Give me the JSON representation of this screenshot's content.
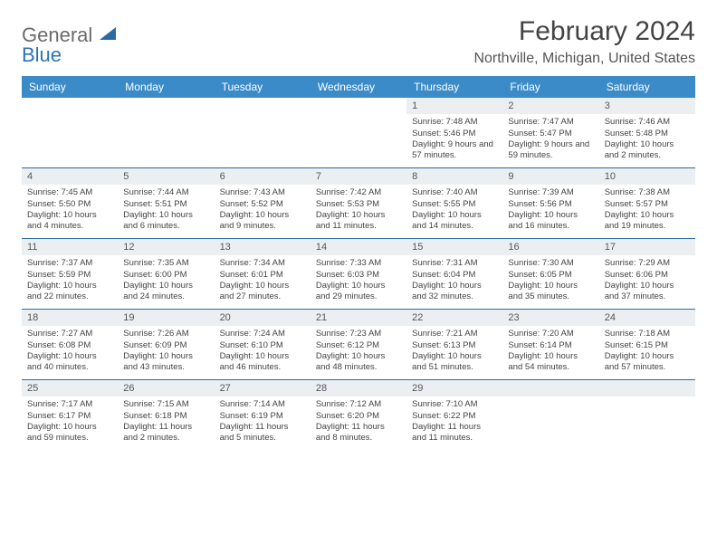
{
  "logo": {
    "word1": "General",
    "word2": "Blue"
  },
  "title": "February 2024",
  "location": "Northville, Michigan, United States",
  "accent_color": "#3b8bc9",
  "border_color": "#2b6aa3",
  "daynum_bg": "#eceff1",
  "headers": [
    "Sunday",
    "Monday",
    "Tuesday",
    "Wednesday",
    "Thursday",
    "Friday",
    "Saturday"
  ],
  "weeks": [
    [
      null,
      null,
      null,
      null,
      {
        "n": "1",
        "sr": "Sunrise: 7:48 AM",
        "ss": "Sunset: 5:46 PM",
        "dl": "Daylight: 9 hours and 57 minutes."
      },
      {
        "n": "2",
        "sr": "Sunrise: 7:47 AM",
        "ss": "Sunset: 5:47 PM",
        "dl": "Daylight: 9 hours and 59 minutes."
      },
      {
        "n": "3",
        "sr": "Sunrise: 7:46 AM",
        "ss": "Sunset: 5:48 PM",
        "dl": "Daylight: 10 hours and 2 minutes."
      }
    ],
    [
      {
        "n": "4",
        "sr": "Sunrise: 7:45 AM",
        "ss": "Sunset: 5:50 PM",
        "dl": "Daylight: 10 hours and 4 minutes."
      },
      {
        "n": "5",
        "sr": "Sunrise: 7:44 AM",
        "ss": "Sunset: 5:51 PM",
        "dl": "Daylight: 10 hours and 6 minutes."
      },
      {
        "n": "6",
        "sr": "Sunrise: 7:43 AM",
        "ss": "Sunset: 5:52 PM",
        "dl": "Daylight: 10 hours and 9 minutes."
      },
      {
        "n": "7",
        "sr": "Sunrise: 7:42 AM",
        "ss": "Sunset: 5:53 PM",
        "dl": "Daylight: 10 hours and 11 minutes."
      },
      {
        "n": "8",
        "sr": "Sunrise: 7:40 AM",
        "ss": "Sunset: 5:55 PM",
        "dl": "Daylight: 10 hours and 14 minutes."
      },
      {
        "n": "9",
        "sr": "Sunrise: 7:39 AM",
        "ss": "Sunset: 5:56 PM",
        "dl": "Daylight: 10 hours and 16 minutes."
      },
      {
        "n": "10",
        "sr": "Sunrise: 7:38 AM",
        "ss": "Sunset: 5:57 PM",
        "dl": "Daylight: 10 hours and 19 minutes."
      }
    ],
    [
      {
        "n": "11",
        "sr": "Sunrise: 7:37 AM",
        "ss": "Sunset: 5:59 PM",
        "dl": "Daylight: 10 hours and 22 minutes."
      },
      {
        "n": "12",
        "sr": "Sunrise: 7:35 AM",
        "ss": "Sunset: 6:00 PM",
        "dl": "Daylight: 10 hours and 24 minutes."
      },
      {
        "n": "13",
        "sr": "Sunrise: 7:34 AM",
        "ss": "Sunset: 6:01 PM",
        "dl": "Daylight: 10 hours and 27 minutes."
      },
      {
        "n": "14",
        "sr": "Sunrise: 7:33 AM",
        "ss": "Sunset: 6:03 PM",
        "dl": "Daylight: 10 hours and 29 minutes."
      },
      {
        "n": "15",
        "sr": "Sunrise: 7:31 AM",
        "ss": "Sunset: 6:04 PM",
        "dl": "Daylight: 10 hours and 32 minutes."
      },
      {
        "n": "16",
        "sr": "Sunrise: 7:30 AM",
        "ss": "Sunset: 6:05 PM",
        "dl": "Daylight: 10 hours and 35 minutes."
      },
      {
        "n": "17",
        "sr": "Sunrise: 7:29 AM",
        "ss": "Sunset: 6:06 PM",
        "dl": "Daylight: 10 hours and 37 minutes."
      }
    ],
    [
      {
        "n": "18",
        "sr": "Sunrise: 7:27 AM",
        "ss": "Sunset: 6:08 PM",
        "dl": "Daylight: 10 hours and 40 minutes."
      },
      {
        "n": "19",
        "sr": "Sunrise: 7:26 AM",
        "ss": "Sunset: 6:09 PM",
        "dl": "Daylight: 10 hours and 43 minutes."
      },
      {
        "n": "20",
        "sr": "Sunrise: 7:24 AM",
        "ss": "Sunset: 6:10 PM",
        "dl": "Daylight: 10 hours and 46 minutes."
      },
      {
        "n": "21",
        "sr": "Sunrise: 7:23 AM",
        "ss": "Sunset: 6:12 PM",
        "dl": "Daylight: 10 hours and 48 minutes."
      },
      {
        "n": "22",
        "sr": "Sunrise: 7:21 AM",
        "ss": "Sunset: 6:13 PM",
        "dl": "Daylight: 10 hours and 51 minutes."
      },
      {
        "n": "23",
        "sr": "Sunrise: 7:20 AM",
        "ss": "Sunset: 6:14 PM",
        "dl": "Daylight: 10 hours and 54 minutes."
      },
      {
        "n": "24",
        "sr": "Sunrise: 7:18 AM",
        "ss": "Sunset: 6:15 PM",
        "dl": "Daylight: 10 hours and 57 minutes."
      }
    ],
    [
      {
        "n": "25",
        "sr": "Sunrise: 7:17 AM",
        "ss": "Sunset: 6:17 PM",
        "dl": "Daylight: 10 hours and 59 minutes."
      },
      {
        "n": "26",
        "sr": "Sunrise: 7:15 AM",
        "ss": "Sunset: 6:18 PM",
        "dl": "Daylight: 11 hours and 2 minutes."
      },
      {
        "n": "27",
        "sr": "Sunrise: 7:14 AM",
        "ss": "Sunset: 6:19 PM",
        "dl": "Daylight: 11 hours and 5 minutes."
      },
      {
        "n": "28",
        "sr": "Sunrise: 7:12 AM",
        "ss": "Sunset: 6:20 PM",
        "dl": "Daylight: 11 hours and 8 minutes."
      },
      {
        "n": "29",
        "sr": "Sunrise: 7:10 AM",
        "ss": "Sunset: 6:22 PM",
        "dl": "Daylight: 11 hours and 11 minutes."
      },
      null,
      null
    ]
  ]
}
